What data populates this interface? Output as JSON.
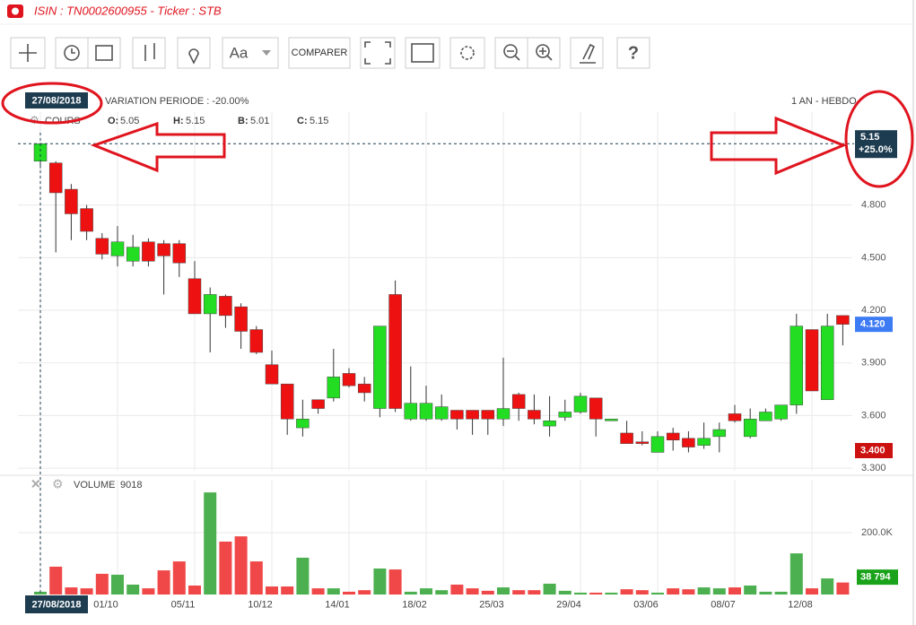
{
  "header": {
    "title": "ISIN : TN0002600955 - Ticker : STB"
  },
  "toolbar": {
    "font_button": "Aa",
    "compare_button": "COMPARER"
  },
  "info": {
    "variation": "VARIATION PERIODE : -20.00%",
    "period": "1 AN - HEBDO"
  },
  "chart_data": {
    "type": "candlestick",
    "categories": [
      "27/08/2018",
      null,
      null,
      null,
      null,
      "01/10",
      null,
      null,
      null,
      null,
      "05/11",
      null,
      null,
      null,
      null,
      "10/12",
      null,
      null,
      null,
      null,
      "14/01",
      null,
      null,
      null,
      null,
      "18/02",
      null,
      null,
      null,
      null,
      "25/03",
      null,
      null,
      null,
      null,
      "29/04",
      null,
      null,
      null,
      null,
      "03/06",
      null,
      null,
      null,
      null,
      "08/07",
      null,
      null,
      null,
      null,
      "12/08",
      null,
      null
    ],
    "open": [
      5.05,
      5.04,
      4.89,
      4.78,
      4.61,
      4.51,
      4.48,
      4.59,
      4.58,
      4.58,
      4.38,
      4.18,
      4.28,
      4.22,
      4.09,
      3.89,
      3.78,
      3.53,
      3.69,
      3.7,
      3.84,
      3.78,
      3.64,
      4.29,
      3.58,
      3.58,
      3.58,
      3.63,
      3.63,
      3.63,
      3.58,
      3.72,
      3.63,
      3.54,
      3.59,
      3.62,
      3.7,
      3.57,
      3.5,
      3.45,
      3.39,
      3.5,
      3.47,
      3.43,
      3.48,
      3.61,
      3.48,
      3.57,
      3.58,
      3.66,
      4.09,
      3.69,
      4.17
    ],
    "high": [
      5.15,
      5.05,
      4.92,
      4.8,
      4.64,
      4.68,
      4.63,
      4.61,
      4.6,
      4.6,
      4.48,
      4.33,
      4.29,
      4.24,
      4.11,
      3.97,
      3.78,
      3.69,
      3.69,
      3.98,
      3.87,
      3.82,
      4.11,
      4.37,
      3.88,
      3.77,
      3.72,
      3.63,
      3.63,
      3.63,
      3.93,
      3.73,
      3.72,
      3.71,
      3.69,
      3.73,
      3.7,
      3.58,
      3.57,
      3.51,
      3.51,
      3.53,
      3.51,
      3.56,
      3.56,
      3.66,
      3.64,
      3.64,
      3.66,
      4.18,
      4.09,
      4.18,
      4.17
    ],
    "low": [
      5.01,
      4.53,
      4.6,
      4.6,
      4.49,
      4.45,
      4.45,
      4.45,
      4.29,
      4.39,
      4.18,
      3.96,
      4.1,
      3.98,
      3.95,
      3.78,
      3.49,
      3.48,
      3.61,
      3.68,
      3.76,
      3.68,
      3.59,
      3.62,
      3.57,
      3.57,
      3.57,
      3.52,
      3.49,
      3.49,
      3.54,
      3.57,
      3.55,
      3.48,
      3.57,
      3.61,
      3.48,
      3.57,
      3.44,
      3.43,
      3.39,
      3.4,
      3.39,
      3.41,
      3.39,
      3.56,
      3.47,
      3.57,
      3.57,
      3.61,
      3.74,
      3.69,
      4.0
    ],
    "close": [
      5.15,
      4.87,
      4.75,
      4.65,
      4.52,
      4.59,
      4.56,
      4.48,
      4.51,
      4.47,
      4.18,
      4.29,
      4.17,
      4.08,
      3.96,
      3.78,
      3.58,
      3.58,
      3.64,
      3.82,
      3.77,
      3.73,
      4.11,
      3.64,
      3.67,
      3.67,
      3.65,
      3.58,
      3.58,
      3.58,
      3.64,
      3.64,
      3.58,
      3.57,
      3.62,
      3.71,
      3.58,
      3.58,
      3.44,
      3.44,
      3.48,
      3.46,
      3.42,
      3.47,
      3.52,
      3.57,
      3.58,
      3.62,
      3.66,
      4.11,
      3.74,
      4.11,
      4.12
    ],
    "up_color": "#22dd22",
    "down_color": "#ee1111",
    "ylim": [
      3.285,
      5.33
    ],
    "yticks": [
      {
        "value": 3.3,
        "label": "3.300"
      },
      {
        "value": 3.6,
        "label": "3.600"
      },
      {
        "value": 3.9,
        "label": "3.900"
      },
      {
        "value": 4.2,
        "label": "4.200"
      },
      {
        "value": 4.5,
        "label": "4.500"
      },
      {
        "value": 4.8,
        "label": "4.800"
      }
    ],
    "grid": true,
    "price_title": "COURS",
    "legend_labels": {
      "open": "O:",
      "high": "H:",
      "low": "B:",
      "close": "C:"
    },
    "crosshair": {
      "date": "27/08/2018",
      "value": 5.15,
      "label": "5.15",
      "change": "+25.0%",
      "color": "#1d3c50"
    },
    "price_markers": [
      {
        "value": 4.12,
        "label": "4.120",
        "color": "#3d7bf5"
      },
      {
        "value": 3.4,
        "label": "3.400",
        "color": "#cc1111"
      }
    ],
    "volume_title": "VOLUME",
    "volumes": [
      9018,
      90000,
      23000,
      20000,
      67000,
      64000,
      32000,
      20000,
      78000,
      107000,
      29000,
      330000,
      171000,
      188000,
      107000,
      26000,
      26000,
      119000,
      20000,
      20000,
      9000,
      14000,
      84000,
      81000,
      9000,
      20000,
      14000,
      32000,
      20000,
      12000,
      23000,
      14000,
      14000,
      35000,
      12000,
      6000,
      6000,
      6000,
      17000,
      14000,
      6000,
      20000,
      17000,
      23000,
      20000,
      23000,
      29000,
      9000,
      9000,
      133000,
      20000,
      52000,
      38794
    ],
    "volume_up_color": "#4cb050",
    "volume_down_color": "#f04848",
    "volume_ylim": [
      0,
      371000
    ],
    "volume_yticks": [
      {
        "value": 200000,
        "label": "200.0K"
      }
    ],
    "volume_markers": [
      {
        "value": 38794,
        "label": "38 794",
        "color": "#1aa31a"
      }
    ]
  }
}
